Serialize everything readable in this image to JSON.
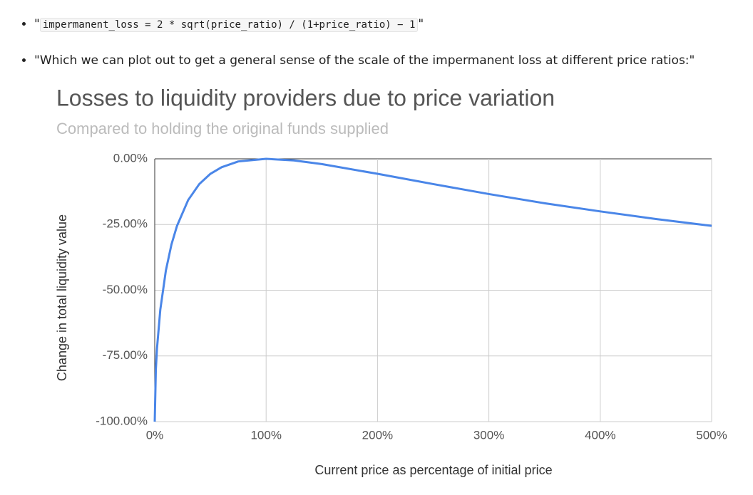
{
  "document": {
    "bullets": [
      {
        "quote_open": "\"",
        "code": "impermanent_loss = 2 * sqrt(price_ratio) / (1+price_ratio) − 1",
        "quote_close": "\""
      },
      {
        "text": "\"Which we can plot out to get a general sense of the scale of the impermanent loss at different price ratios:\""
      }
    ]
  },
  "chart_data": {
    "type": "line",
    "title": "Losses to liquidity providers due to price variation",
    "subtitle": "Compared to holding the original funds supplied",
    "x_label": "Current price as percentage of initial price",
    "y_label": "Change in total liquidity value",
    "x": [
      0,
      1,
      2,
      5,
      10,
      15,
      20,
      30,
      40,
      50,
      60,
      75,
      100,
      125,
      150,
      200,
      250,
      300,
      350,
      400,
      450,
      500
    ],
    "series": [
      {
        "name": "Change in total liquidity value",
        "color": "#4a86e8",
        "values": [
          -100,
          -80.2,
          -72.3,
          -57.4,
          -42.5,
          -32.6,
          -25.5,
          -15.7,
          -9.6,
          -5.7,
          -3.2,
          -1.0,
          0,
          -0.6,
          -2.0,
          -5.7,
          -9.6,
          -13.4,
          -16.9,
          -20,
          -22.9,
          -25.5
        ]
      }
    ],
    "xlim": [
      0,
      500
    ],
    "xticks": [
      {
        "value": 0,
        "label": "0%"
      },
      {
        "value": 100,
        "label": "100%"
      },
      {
        "value": 200,
        "label": "200%"
      },
      {
        "value": 300,
        "label": "300%"
      },
      {
        "value": 400,
        "label": "400%"
      },
      {
        "value": 500,
        "label": "500%"
      }
    ],
    "ylim": [
      -100,
      0
    ],
    "yticks": [
      {
        "value": 0,
        "label": "0.00%"
      },
      {
        "value": -25,
        "label": "-25.00%"
      },
      {
        "value": -50,
        "label": "-50.00%"
      },
      {
        "value": -75,
        "label": "-75.00%"
      },
      {
        "value": -100,
        "label": "-100.00%"
      }
    ],
    "grid": true
  }
}
